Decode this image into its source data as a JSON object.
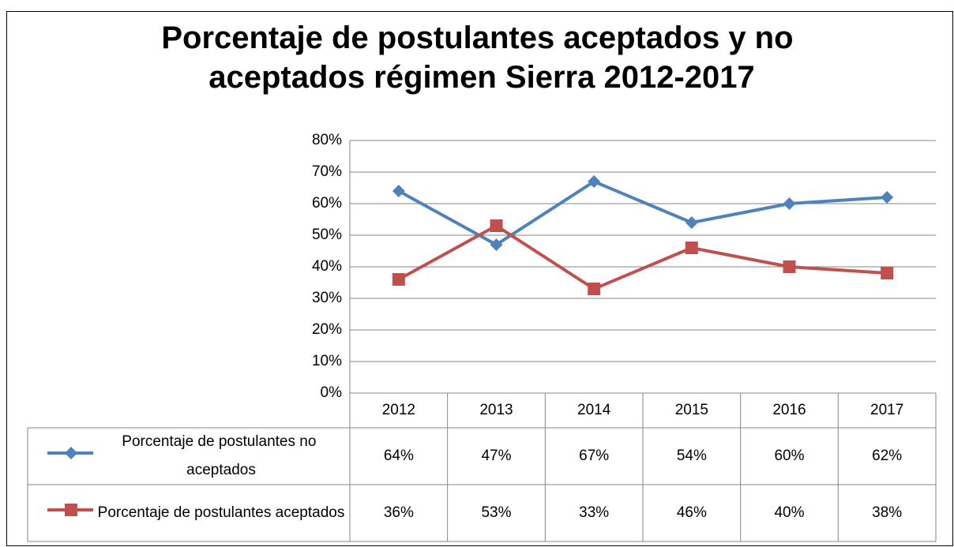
{
  "chart_data": {
    "type": "line",
    "title": "Porcentaje de postulantes aceptados y no aceptados régimen Sierra 2012-2017",
    "categories": [
      "2012",
      "2013",
      "2014",
      "2015",
      "2016",
      "2017"
    ],
    "series": [
      {
        "name": "Porcentaje de postulantes no aceptados",
        "color": "#4f81bd",
        "marker": "diamond",
        "values": [
          64,
          47,
          67,
          54,
          60,
          62
        ],
        "value_labels": [
          "64%",
          "47%",
          "67%",
          "54%",
          "60%",
          "62%"
        ]
      },
      {
        "name": "Porcentaje de postulantes aceptados",
        "color": "#c0504d",
        "marker": "square",
        "values": [
          36,
          53,
          33,
          46,
          40,
          38
        ],
        "value_labels": [
          "36%",
          "53%",
          "33%",
          "46%",
          "40%",
          "38%"
        ]
      }
    ],
    "ylim": [
      0,
      80
    ],
    "yticks": [
      {
        "value": 0,
        "label": "0%"
      },
      {
        "value": 10,
        "label": "10%"
      },
      {
        "value": 20,
        "label": "20%"
      },
      {
        "value": 30,
        "label": "30%"
      },
      {
        "value": 40,
        "label": "40%"
      },
      {
        "value": 50,
        "label": "50%"
      },
      {
        "value": 60,
        "label": "60%"
      },
      {
        "value": 70,
        "label": "70%"
      },
      {
        "value": 80,
        "label": "80%"
      }
    ],
    "grid": true
  }
}
